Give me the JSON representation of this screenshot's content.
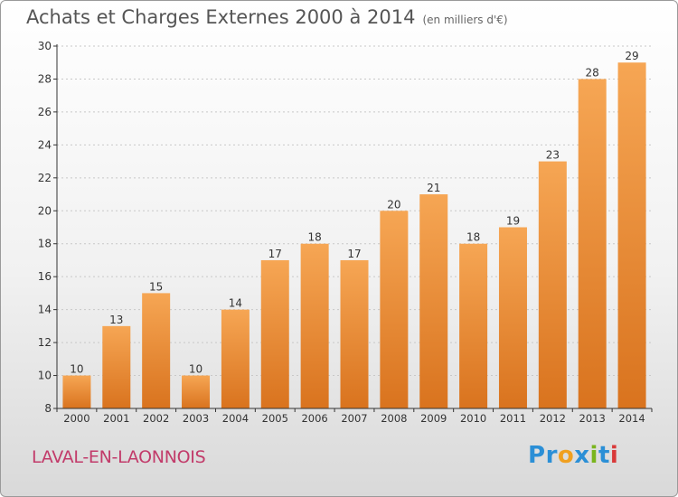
{
  "header": {
    "title": "Achats et Charges Externes 2000 à 2014",
    "subtitle": "(en milliers d'€)"
  },
  "footer": {
    "city": "LAVAL-EN-LAONNOIS",
    "logo_text": "Proxiti",
    "logo_colors": [
      "#2b8fd6",
      "#2b8fd6",
      "#f0a020",
      "#2b8fd6",
      "#7ab51d",
      "#2b8fd6",
      "#d93a3a"
    ]
  },
  "colors": {
    "bar_top": "#f6a654",
    "bar_bottom": "#d9731e",
    "axis": "#333333",
    "grid": "#c8c8c8",
    "label": "#333333"
  },
  "chart_data": {
    "type": "bar",
    "categories": [
      "2000",
      "2001",
      "2002",
      "2003",
      "2004",
      "2005",
      "2006",
      "2007",
      "2008",
      "2009",
      "2010",
      "2011",
      "2012",
      "2013",
      "2014"
    ],
    "values": [
      10,
      13,
      15,
      10,
      14,
      17,
      18,
      17,
      20,
      21,
      18,
      19,
      23,
      28,
      29
    ],
    "title": "Achats et Charges Externes 2000 à 2014",
    "xlabel": "",
    "ylabel": "",
    "ylim": [
      8,
      30
    ],
    "yticks": [
      8,
      10,
      12,
      14,
      16,
      18,
      20,
      22,
      24,
      26,
      28,
      30
    ],
    "grid": "horizontal-dotted",
    "data_labels": true
  }
}
